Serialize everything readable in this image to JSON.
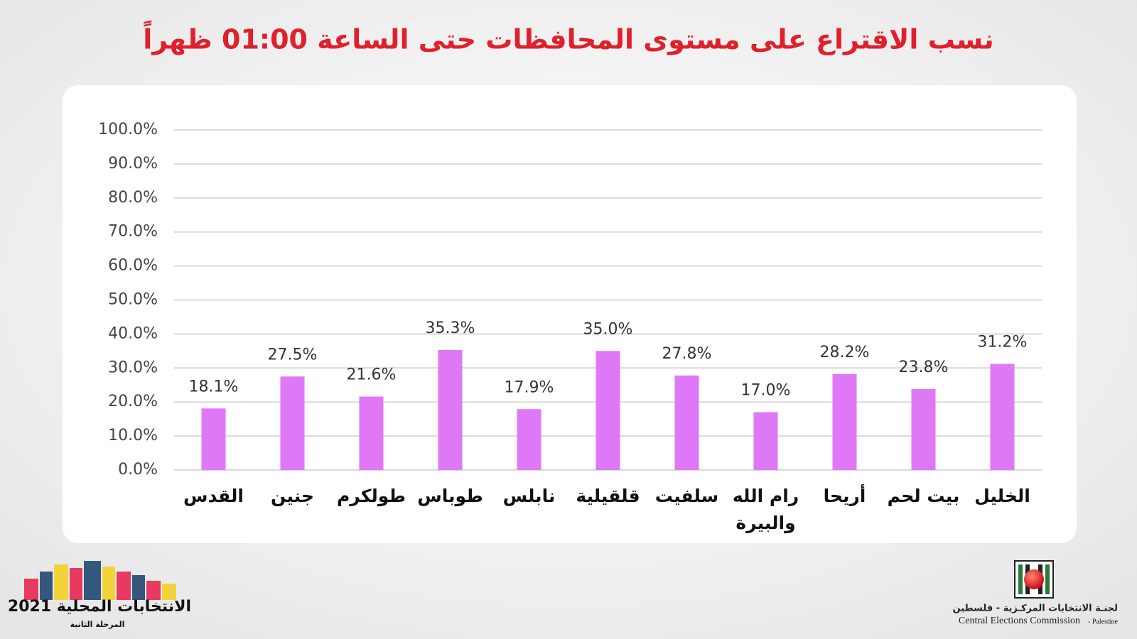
{
  "chart_data": {
    "type": "bar",
    "title": "نسب الاقتراع على مستوى المحافظات حتى الساعة 01:00 ظهراً",
    "categories": [
      "القدس",
      "جنين",
      "طولكرم",
      "طوباس",
      "نابلس",
      "قلقيلية",
      "سلفيت",
      "رام الله والبيرة",
      "أريحا",
      "بيت لحم",
      "الخليل"
    ],
    "values": [
      18.1,
      27.5,
      21.6,
      35.3,
      17.9,
      35.0,
      27.8,
      17.0,
      28.2,
      23.8,
      31.2
    ],
    "value_labels": [
      "18.1%",
      "27.5%",
      "21.6%",
      "35.3%",
      "17.9%",
      "35.0%",
      "27.8%",
      "17.0%",
      "28.2%",
      "23.8%",
      "31.2%"
    ],
    "color": "#df78f7",
    "ylim": [
      0,
      100
    ],
    "yticks": [
      {
        "value": 0,
        "label": "0.0%"
      },
      {
        "value": 10,
        "label": "10.0%"
      },
      {
        "value": 20,
        "label": "20.0%"
      },
      {
        "value": 30,
        "label": "30.0%"
      },
      {
        "value": 40,
        "label": "40.0%"
      },
      {
        "value": 50,
        "label": "50.0%"
      },
      {
        "value": 60,
        "label": "60.0%"
      },
      {
        "value": 70,
        "label": "70.0%"
      },
      {
        "value": 80,
        "label": "80.0%"
      },
      {
        "value": 90,
        "label": "90.0%"
      },
      {
        "value": 100,
        "label": "100.0%"
      }
    ],
    "grid": true
  },
  "footer": {
    "event_title": "الانتخابات المحلية 2021",
    "event_phase": "المرحلة الثانية",
    "commission_arabic": "لجنـة الانتخابات المركـزية - فلسطين",
    "commission_english": "Central Elections Commission",
    "commission_country": "- Palestine"
  }
}
